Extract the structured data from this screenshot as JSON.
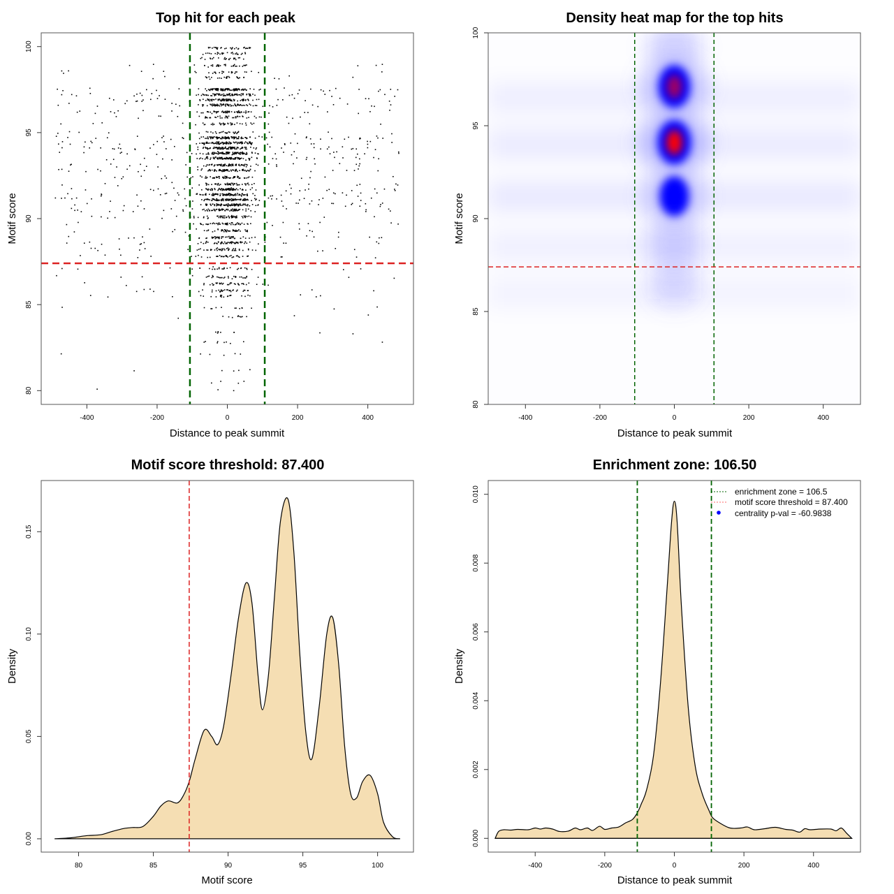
{
  "chart_data": [
    {
      "type": "scatter",
      "title": "Top hit for each peak",
      "xlabel": "Distance to peak summit",
      "ylabel": "Motif score",
      "xlim": [
        -530,
        530
      ],
      "ylim": [
        79.2,
        100.8
      ],
      "xticks": [
        -400,
        -200,
        0,
        200,
        400
      ],
      "yticks": [
        80,
        85,
        90,
        95,
        100
      ],
      "vlines": {
        "values": [
          -106.5,
          106.5
        ],
        "color": "#006400",
        "style": "dashed"
      },
      "hline": {
        "value": 87.4,
        "color": "#dd2222",
        "style": "dashed"
      },
      "score_bands": [
        {
          "score": 99.9,
          "weight": 0.35
        },
        {
          "score": 99.6,
          "weight": 0.3
        },
        {
          "score": 99.3,
          "weight": 0.25
        },
        {
          "score": 98.9,
          "weight": 0.3
        },
        {
          "score": 98.5,
          "weight": 0.25
        },
        {
          "score": 98.2,
          "weight": 0.25
        },
        {
          "score": 97.5,
          "weight": 0.9
        },
        {
          "score": 97.2,
          "weight": 0.8
        },
        {
          "score": 96.9,
          "weight": 0.8
        },
        {
          "score": 96.6,
          "weight": 0.7
        },
        {
          "score": 96.2,
          "weight": 0.6
        },
        {
          "score": 95.9,
          "weight": 0.4
        },
        {
          "score": 95.5,
          "weight": 0.35
        },
        {
          "score": 95.0,
          "weight": 0.3
        },
        {
          "score": 94.7,
          "weight": 1.0
        },
        {
          "score": 94.4,
          "weight": 1.0
        },
        {
          "score": 94.1,
          "weight": 1.0
        },
        {
          "score": 93.8,
          "weight": 0.95
        },
        {
          "score": 93.5,
          "weight": 0.9
        },
        {
          "score": 93.1,
          "weight": 0.8
        },
        {
          "score": 92.8,
          "weight": 0.7
        },
        {
          "score": 92.4,
          "weight": 0.55
        },
        {
          "score": 92.0,
          "weight": 0.5
        },
        {
          "score": 91.7,
          "weight": 0.8
        },
        {
          "score": 91.4,
          "weight": 0.95
        },
        {
          "score": 91.1,
          "weight": 0.95
        },
        {
          "score": 90.8,
          "weight": 0.85
        },
        {
          "score": 90.5,
          "weight": 0.7
        },
        {
          "score": 90.1,
          "weight": 0.55
        },
        {
          "score": 89.7,
          "weight": 0.5
        },
        {
          "score": 89.3,
          "weight": 0.45
        },
        {
          "score": 88.9,
          "weight": 0.5
        },
        {
          "score": 88.6,
          "weight": 0.55
        },
        {
          "score": 88.2,
          "weight": 0.45
        },
        {
          "score": 87.8,
          "weight": 0.35
        },
        {
          "score": 87.1,
          "weight": 0.25
        },
        {
          "score": 86.6,
          "weight": 0.3
        },
        {
          "score": 86.2,
          "weight": 0.3
        },
        {
          "score": 85.8,
          "weight": 0.3
        },
        {
          "score": 85.5,
          "weight": 0.2
        },
        {
          "score": 84.8,
          "weight": 0.12
        },
        {
          "score": 84.3,
          "weight": 0.1
        },
        {
          "score": 83.4,
          "weight": 0.08
        },
        {
          "score": 82.8,
          "weight": 0.08
        },
        {
          "score": 82.1,
          "weight": 0.05
        },
        {
          "score": 81.2,
          "weight": 0.04
        },
        {
          "score": 80.5,
          "weight": 0.03
        },
        {
          "score": 80.0,
          "weight": 0.02
        }
      ]
    },
    {
      "type": "heatmap",
      "title": "Density heat map for the top hits",
      "xlabel": "Distance to peak summit",
      "ylabel": "Motif score",
      "xlim": [
        -500,
        500
      ],
      "ylim": [
        80,
        100
      ],
      "xticks": [
        -400,
        -200,
        0,
        200,
        400
      ],
      "yticks": [
        80,
        85,
        90,
        95,
        100
      ],
      "colormap": [
        "#ffffff",
        "#0000ff",
        "#ff0000"
      ],
      "hotspots": [
        {
          "x": 0,
          "y": 99.2,
          "intensity": 0.35
        },
        {
          "x": 0,
          "y": 97.1,
          "intensity": 0.85
        },
        {
          "x": 0,
          "y": 94.1,
          "intensity": 1.0
        },
        {
          "x": 0,
          "y": 91.2,
          "intensity": 0.6
        },
        {
          "x": 0,
          "y": 88.7,
          "intensity": 0.3
        },
        {
          "x": 0,
          "y": 86.3,
          "intensity": 0.1
        }
      ],
      "background_bands": [
        {
          "y": 96.5,
          "intensity": 0.06
        },
        {
          "y": 94.0,
          "intensity": 0.07
        },
        {
          "y": 91.2,
          "intensity": 0.08
        },
        {
          "y": 88.5,
          "intensity": 0.05
        },
        {
          "y": 86.0,
          "intensity": 0.04
        }
      ],
      "vlines": {
        "values": [
          -106.5,
          106.5
        ],
        "color": "#006400",
        "style": "dashed"
      },
      "hline": {
        "value": 87.4,
        "color": "#dd2222",
        "style": "dashed"
      }
    },
    {
      "type": "area",
      "title": "Motif score threshold: 87.400",
      "xlabel": "Motif score",
      "ylabel": "Density",
      "xlim": [
        77.5,
        102.4
      ],
      "ylim": [
        -0.0065,
        0.175
      ],
      "xticks": [
        80,
        85,
        90,
        95,
        100
      ],
      "yticks": [
        0.0,
        0.05,
        0.1,
        0.15
      ],
      "ytick_labels": [
        "0.00",
        "0.05",
        "0.10",
        "0.15"
      ],
      "fill": "#f5deb3",
      "vline": {
        "value": 87.4,
        "color": "#dd2222",
        "style": "dashed"
      },
      "x": [
        78.4,
        79.5,
        80.5,
        81.5,
        82.2,
        83.0,
        83.6,
        84.3,
        85.0,
        85.5,
        86.0,
        86.6,
        87.0,
        87.4,
        87.8,
        88.4,
        88.9,
        89.3,
        89.7,
        90.2,
        90.7,
        91.2,
        91.6,
        92.0,
        92.3,
        92.7,
        93.1,
        93.5,
        94.0,
        94.4,
        94.8,
        95.2,
        95.6,
        96.1,
        96.6,
        97.0,
        97.4,
        97.8,
        98.2,
        98.6,
        99.0,
        99.5,
        100.0,
        100.4,
        101.0,
        101.5
      ],
      "y": [
        0.0,
        0.0005,
        0.0015,
        0.002,
        0.0035,
        0.005,
        0.0055,
        0.006,
        0.011,
        0.016,
        0.0185,
        0.0175,
        0.021,
        0.028,
        0.039,
        0.053,
        0.05,
        0.046,
        0.055,
        0.08,
        0.108,
        0.125,
        0.115,
        0.08,
        0.063,
        0.08,
        0.118,
        0.155,
        0.166,
        0.14,
        0.09,
        0.052,
        0.039,
        0.065,
        0.1,
        0.108,
        0.085,
        0.045,
        0.022,
        0.02,
        0.028,
        0.031,
        0.022,
        0.008,
        0.001,
        0.0
      ]
    },
    {
      "type": "area",
      "title": "Enrichment zone: 106.50",
      "xlabel": "Distance to peak summit",
      "ylabel": "Density",
      "xlim": [
        -535,
        535
      ],
      "ylim": [
        -0.0004,
        0.0104
      ],
      "xticks": [
        -400,
        -200,
        0,
        200,
        400
      ],
      "yticks": [
        0.0,
        0.002,
        0.004,
        0.006,
        0.008,
        0.01
      ],
      "ytick_labels": [
        "0.000",
        "0.002",
        "0.004",
        "0.006",
        "0.008",
        "0.010"
      ],
      "fill": "#f5deb3",
      "vlines": {
        "values": [
          -106.5,
          106.5
        ],
        "color": "#006400",
        "style": "dashed"
      },
      "x": [
        -515,
        -505,
        -490,
        -470,
        -450,
        -420,
        -400,
        -385,
        -370,
        -350,
        -330,
        -305,
        -285,
        -270,
        -250,
        -235,
        -215,
        -200,
        -180,
        -160,
        -140,
        -120,
        -106,
        -95,
        -80,
        -60,
        -40,
        -20,
        -8,
        0,
        8,
        20,
        40,
        60,
        80,
        100,
        110,
        130,
        160,
        190,
        210,
        230,
        260,
        290,
        320,
        340,
        360,
        375,
        390,
        420,
        450,
        465,
        480,
        495,
        510
      ],
      "y": [
        0.0,
        0.0002,
        0.00025,
        0.00024,
        0.00026,
        0.00025,
        0.0003,
        0.00027,
        0.0003,
        0.00027,
        0.0002,
        0.00021,
        0.0003,
        0.00025,
        0.0003,
        0.00023,
        0.00035,
        0.00026,
        0.0003,
        0.00033,
        0.00045,
        0.00055,
        0.00075,
        0.001,
        0.0014,
        0.0024,
        0.0045,
        0.0074,
        0.0092,
        0.0098,
        0.0092,
        0.0068,
        0.0038,
        0.0021,
        0.0013,
        0.0008,
        0.0006,
        0.00045,
        0.0003,
        0.0003,
        0.00033,
        0.00025,
        0.00028,
        0.00032,
        0.00026,
        0.00024,
        0.00018,
        0.00028,
        0.00025,
        0.00027,
        0.00027,
        0.00022,
        0.0003,
        0.00015,
        0.0
      ]
    }
  ],
  "legend": {
    "position": "top-right",
    "entries": [
      {
        "label": "enrichment zone = 106.5",
        "color": "#006400",
        "kind": "dotted-line"
      },
      {
        "label": "motif score threshold = 87.400",
        "color": "#ff6666",
        "kind": "dotted-line"
      },
      {
        "label": "centrality p-val = -60.9838",
        "color": "#0000ff",
        "kind": "point"
      }
    ]
  }
}
